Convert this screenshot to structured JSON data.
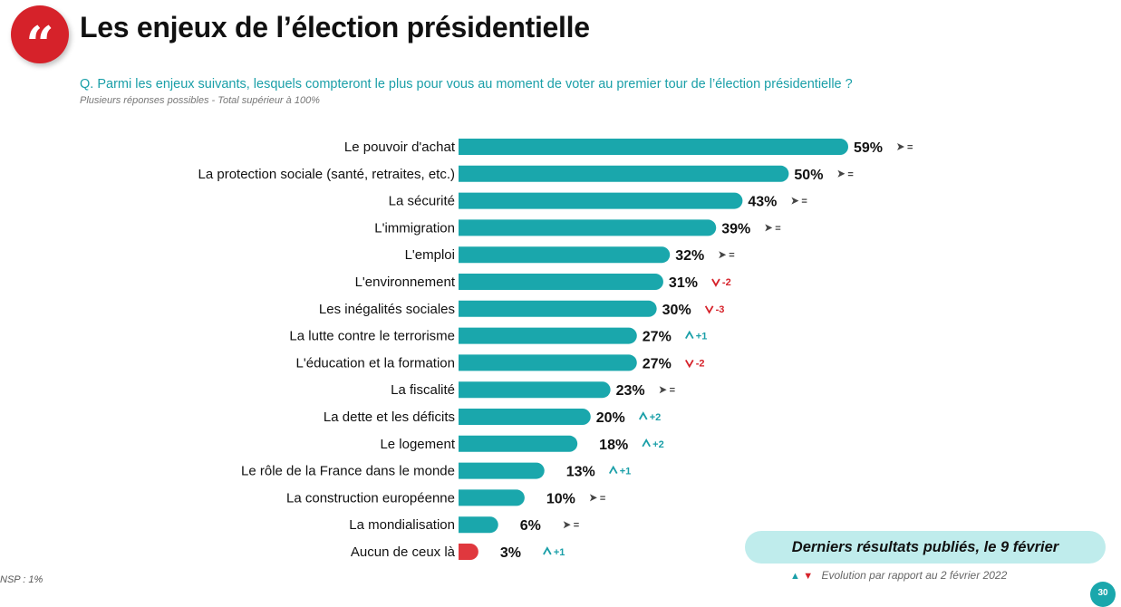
{
  "header": {
    "quote_icon": "quote-icon",
    "quote_glyph": "“",
    "title": "Les enjeux de l’élection présidentielle",
    "question": "Q. Parmi les enjeux suivants, lesquels compteront le plus pour vous au moment de voter au premier tour de l’élection présidentielle ?",
    "note": "Plusieurs réponses possibles - Total supérieur à 100%"
  },
  "colors": {
    "bar": "#1aa7ac",
    "bar_highlight": "#e0383e",
    "up": "#1a9fa8",
    "down": "#d6222a",
    "stable": "#444444"
  },
  "chart_data": {
    "type": "bar",
    "orientation": "horizontal",
    "unit": "%",
    "xlim": [
      0,
      59
    ],
    "categories": [
      "Le pouvoir d'achat",
      "La protection sociale (santé, retraites, etc.)",
      "La sécurité",
      "L'immigration",
      "L'emploi",
      "L'environnement",
      "Les inégalités sociales",
      "La lutte contre le terrorisme",
      "L'éducation et la formation",
      "La fiscalité",
      "La dette et les déficits",
      "Le logement",
      "Le rôle de la France dans le monde",
      "La construction européenne",
      "La mondialisation",
      "Aucun de ceux là"
    ],
    "values": [
      59,
      50,
      43,
      39,
      32,
      31,
      30,
      27,
      27,
      23,
      20,
      18,
      13,
      10,
      6,
      3
    ],
    "value_labels": [
      "59%",
      "50%",
      "43%",
      "39%",
      "32%",
      "31%",
      "30%",
      "27%",
      "27%",
      "23%",
      "20%",
      "18%",
      "13%",
      "10%",
      "6%",
      "3%"
    ],
    "evolution": [
      "=",
      "=",
      "=",
      "=",
      "=",
      "-2",
      "-3",
      "+1",
      "-2",
      "=",
      "+2",
      "+2",
      "+1",
      "=",
      "=",
      "+1"
    ],
    "evolution_direction": [
      "stable",
      "stable",
      "stable",
      "stable",
      "stable",
      "down",
      "down",
      "up",
      "down",
      "stable",
      "up",
      "up",
      "up",
      "stable",
      "stable",
      "up"
    ],
    "highlight_category": "Aucun de ceux là"
  },
  "footer": {
    "banner": "Derniers résultats publiés, le 9 février",
    "legend_up": "▲",
    "legend_down": "▼",
    "legend_text": "Evolution par rapport au 2 février 2022",
    "nsp": "NSP : 1%",
    "page_number": "30"
  }
}
